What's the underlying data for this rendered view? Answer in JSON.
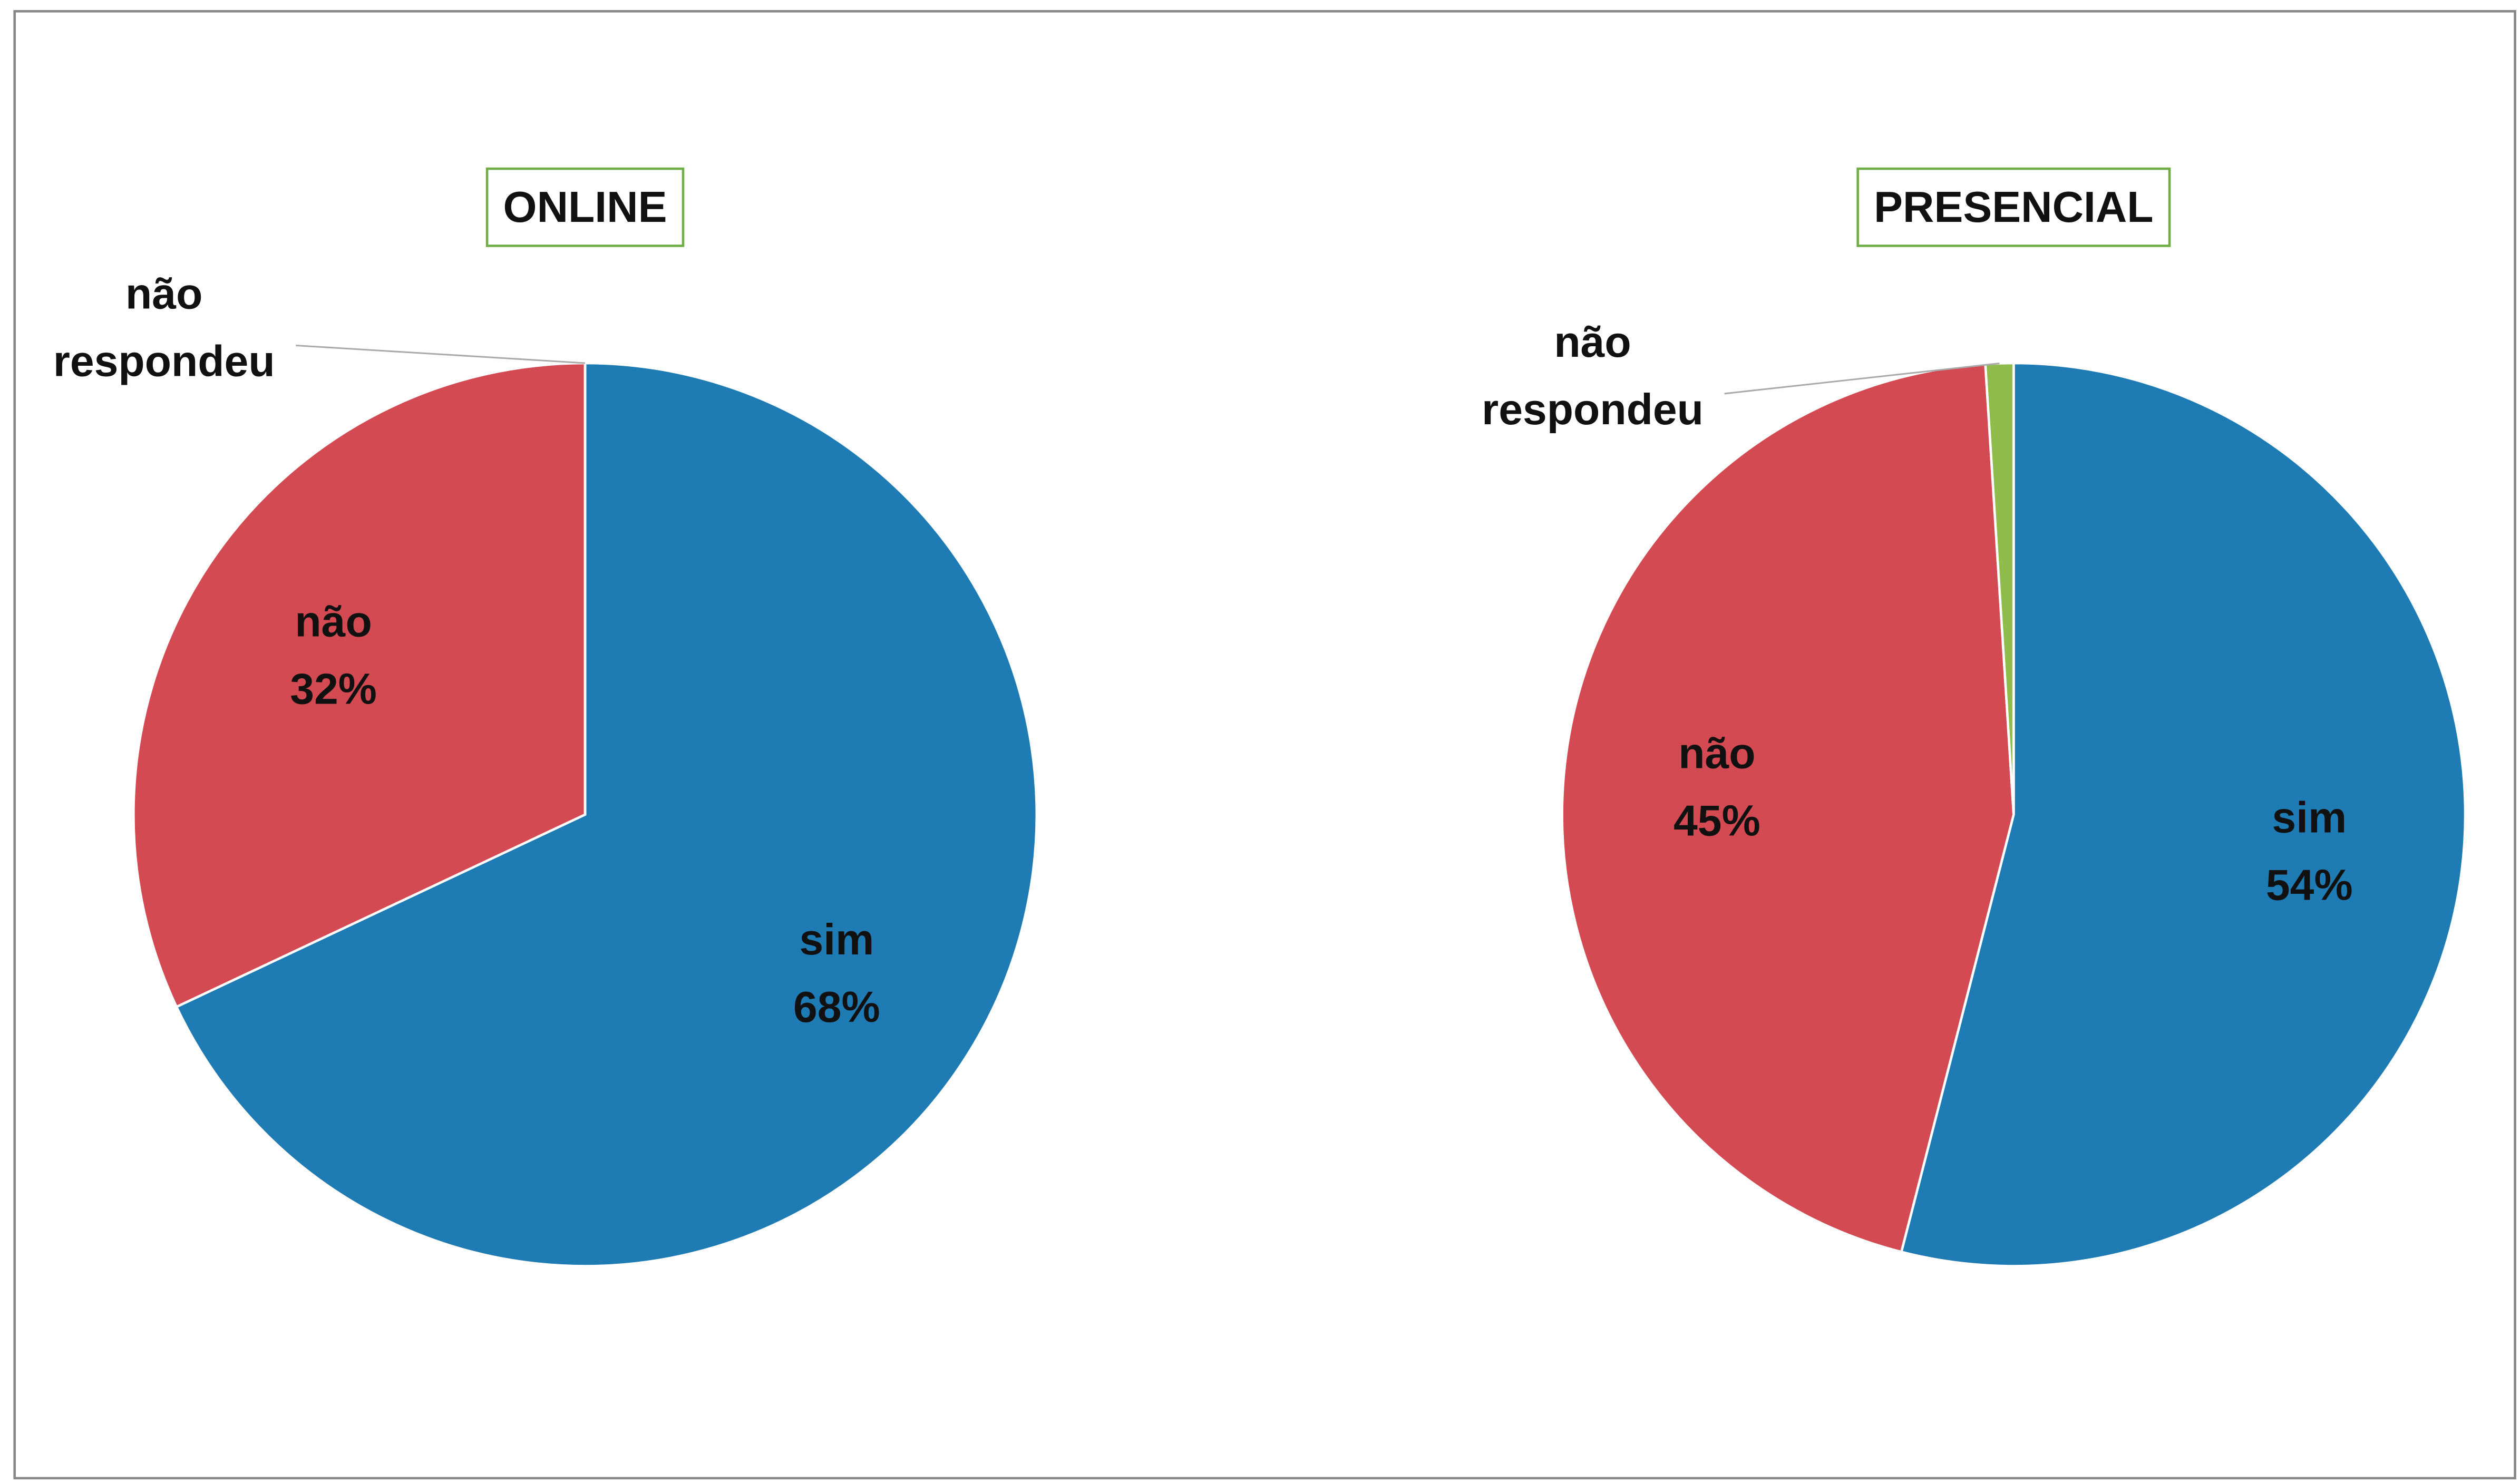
{
  "chart_data": [
    {
      "type": "pie",
      "title": "ONLINE",
      "categories": [
        "sim",
        "não",
        "não respondeu"
      ],
      "values": [
        68,
        32,
        0
      ],
      "value_labels": [
        "68%",
        "32%",
        "0%"
      ],
      "colors": [
        "#1f7bb4",
        "#d44a52",
        "#8fbc4a"
      ]
    },
    {
      "type": "pie",
      "title": "PRESENCIAL",
      "categories": [
        "sim",
        "não",
        "não respondeu"
      ],
      "values": [
        54,
        45,
        1
      ],
      "value_labels": [
        "54%",
        "45%",
        "1%"
      ],
      "colors": [
        "#1f7bb4",
        "#d44a52",
        "#8fbc4a"
      ]
    }
  ]
}
